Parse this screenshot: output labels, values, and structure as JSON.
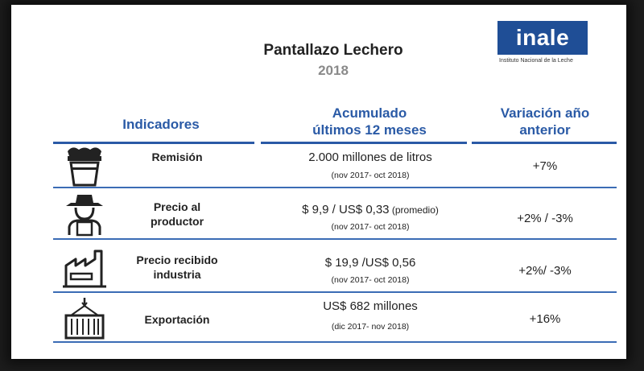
{
  "slide": {
    "title": "Pantallazo Lechero",
    "year": "2018"
  },
  "logo": {
    "name": "inale",
    "subtitle": "Instituto Nacional de la Leche"
  },
  "headers": {
    "indicators": "Indicadores",
    "accumulated_line1": "Acumulado",
    "accumulated_line2": "últimos 12 meses",
    "variation_line1": "Variación año",
    "variation_line2": "anterior"
  },
  "rows": [
    {
      "icon": "milk-bucket-icon",
      "label_line1": "Remisión",
      "label_line2": "",
      "value": "2.000 millones de litros",
      "value_suffix": "",
      "period": "(nov 2017- oct 2018)",
      "variation": "+7%"
    },
    {
      "icon": "farmer-icon",
      "label_line1": "Precio al",
      "label_line2": "productor",
      "value": "$ 9,9 / US$ 0,33",
      "value_suffix": " (promedio)",
      "period": "(nov 2017- oct 2018)",
      "variation": "+2% / -3%"
    },
    {
      "icon": "factory-icon",
      "label_line1": "Precio recibido",
      "label_line2": "industria",
      "value": "$ 19,9 /US$ 0,56",
      "value_suffix": "",
      "period": "(nov 2017- oct 2018)",
      "variation": "+2%/ -3%"
    },
    {
      "icon": "shipping-container-icon",
      "label_line1": "Exportación",
      "label_line2": "",
      "value": "US$ 682 millones",
      "value_suffix": "",
      "period": "(dic 2017- nov 2018)",
      "variation": "+16%"
    }
  ],
  "colors": {
    "accent": "#2a5aa6",
    "logo_bg": "#1f4e96"
  }
}
